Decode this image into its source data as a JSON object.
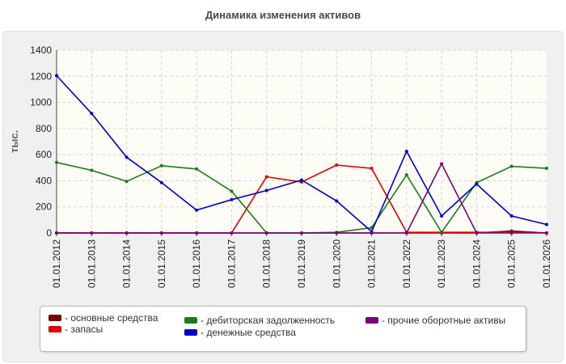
{
  "title": "Динамика изменения активов",
  "chart_data": {
    "type": "line",
    "title": "Динамика изменения активов",
    "ylabel": "тыс.",
    "xlabel": "",
    "ylim": [
      0,
      1400
    ],
    "yticks": [
      0,
      200,
      400,
      600,
      800,
      1000,
      1200,
      1400
    ],
    "grid": true,
    "legend_position": "bottom",
    "categories": [
      "01.01.2012",
      "01.01.2013",
      "01.01.2014",
      "01.01.2015",
      "01.01.2016",
      "01.01.2017",
      "01.01.2018",
      "01.01.2019",
      "01.01.2020",
      "01.01.2021",
      "01.01.2022",
      "01.01.2023",
      "01.01.2024",
      "01.01.2025",
      "01.01.2026"
    ],
    "series": [
      {
        "name": "- основные средства",
        "color": "#7a0000",
        "values": [
          0,
          0,
          0,
          0,
          0,
          0,
          0,
          0,
          0,
          0,
          0,
          0,
          0,
          15,
          0
        ]
      },
      {
        "name": "- запасы",
        "color": "#e00000",
        "values": [
          0,
          0,
          0,
          0,
          0,
          0,
          430,
          390,
          520,
          495,
          5,
          5,
          5,
          5,
          0
        ]
      },
      {
        "name": "- дебиторская задолженность",
        "color": "#1a7d1a",
        "values": [
          540,
          480,
          395,
          515,
          490,
          320,
          0,
          0,
          5,
          40,
          445,
          5,
          385,
          510,
          495
        ]
      },
      {
        "name": "- денежные средства",
        "color": "#0000c8",
        "values": [
          1205,
          915,
          580,
          385,
          175,
          255,
          325,
          405,
          245,
          10,
          625,
          130,
          375,
          130,
          65
        ]
      },
      {
        "name": "- прочие оборотные активы",
        "color": "#7d007d",
        "values": [
          0,
          0,
          0,
          0,
          0,
          0,
          0,
          0,
          0,
          0,
          0,
          530,
          0,
          0,
          0
        ]
      }
    ]
  }
}
